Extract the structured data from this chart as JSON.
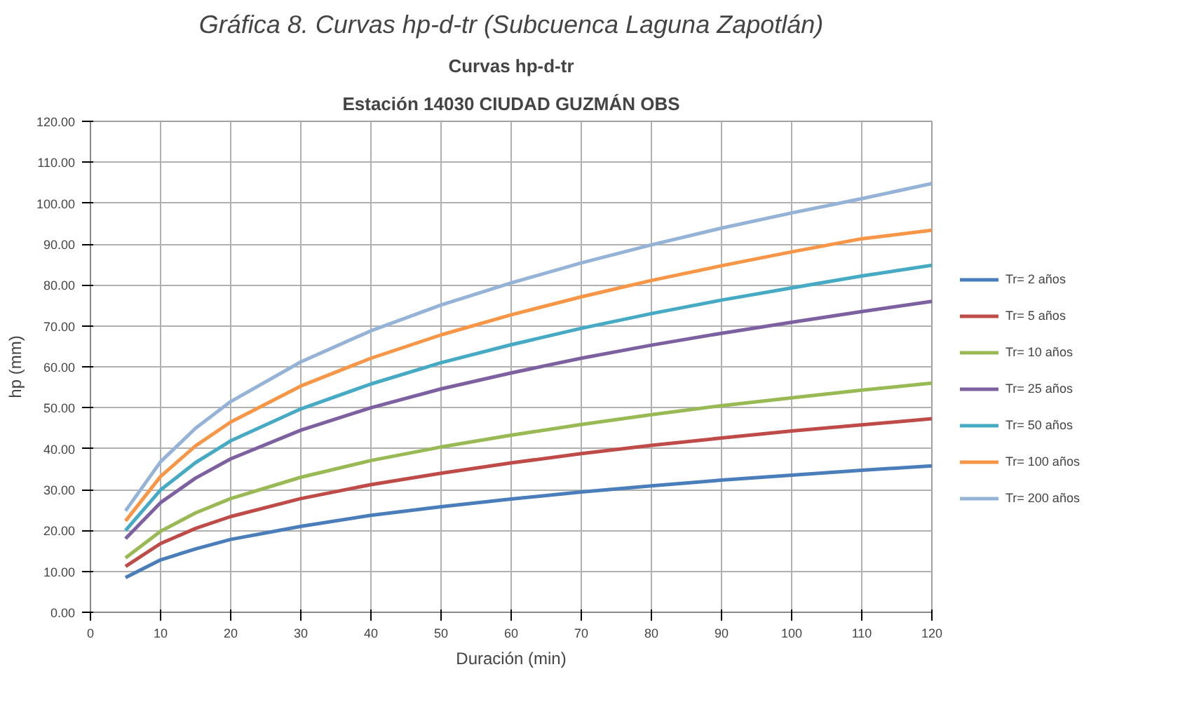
{
  "chart_data": {
    "type": "line",
    "title": "Curvas hp-d-tr",
    "subtitle": "Estación 14030 CIUDAD GUZMÁN OBS",
    "annotations": [
      "Gráfica 8. Curvas hp-d-tr (Subcuenca Laguna Zapotlán)"
    ],
    "xlabel": "Duración (min)",
    "ylabel": "hp (mm)",
    "x": [
      5,
      10,
      15,
      20,
      30,
      40,
      50,
      60,
      70,
      80,
      90,
      100,
      110,
      120
    ],
    "series": [
      {
        "name": "Tr= 2 años",
        "color": "#4a7ebb",
        "values": [
          8.5,
          12.8,
          15.5,
          17.8,
          21,
          23.7,
          25.8,
          27.7,
          29.4,
          30.9,
          32.3,
          33.5,
          34.7,
          35.8
        ]
      },
      {
        "name": "Tr= 5 años",
        "color": "#be4b48",
        "values": [
          11.2,
          16.8,
          20.5,
          23.4,
          27.8,
          31.2,
          34,
          36.5,
          38.8,
          40.8,
          42.6,
          44.3,
          45.8,
          47.3
        ]
      },
      {
        "name": "Tr= 10 años",
        "color": "#98b954",
        "values": [
          13.3,
          19.8,
          24.3,
          27.8,
          33,
          37.1,
          40.4,
          43.3,
          45.9,
          48.3,
          50.5,
          52.4,
          54.3,
          56
        ]
      },
      {
        "name": "Tr= 25 años",
        "color": "#7d60a0",
        "values": [
          18,
          26.8,
          32.8,
          37.5,
          44.5,
          50,
          54.6,
          58.5,
          62.1,
          65.3,
          68.2,
          70.9,
          73.5,
          76
        ]
      },
      {
        "name": "Tr= 50 años",
        "color": "#46aac5",
        "values": [
          20,
          29.9,
          36.6,
          41.9,
          49.7,
          55.8,
          61,
          65.4,
          69.4,
          73,
          76.3,
          79.3,
          82.2,
          84.8
        ]
      },
      {
        "name": "Tr= 100 años",
        "color": "#f79646",
        "values": [
          22.3,
          33.2,
          40.7,
          46.5,
          55.3,
          62.1,
          67.8,
          72.7,
          77.1,
          81.1,
          84.7,
          88.1,
          91.3,
          93.4
        ]
      },
      {
        "name": "Tr= 200 años",
        "color": "#95b3d7",
        "values": [
          24.8,
          36.8,
          45,
          51.5,
          61.2,
          68.8,
          75.1,
          80.5,
          85.4,
          89.8,
          93.9,
          97.6,
          101.1,
          104.8
        ]
      }
    ],
    "xlim": [
      0,
      120
    ],
    "xticks": [
      0,
      10,
      20,
      30,
      40,
      50,
      60,
      70,
      80,
      90,
      100,
      110,
      120
    ],
    "ylim": [
      0,
      120
    ],
    "yticks": [
      {
        "value": 0,
        "label": "0.00"
      },
      {
        "value": 10,
        "label": "10.00"
      },
      {
        "value": 20,
        "label": "20.00"
      },
      {
        "value": 30,
        "label": "30.00"
      },
      {
        "value": 40,
        "label": "40.00"
      },
      {
        "value": 50,
        "label": "50.00"
      },
      {
        "value": 60,
        "label": "60.00"
      },
      {
        "value": 70,
        "label": "70.00"
      },
      {
        "value": 80,
        "label": "80.00"
      },
      {
        "value": 90,
        "label": "90.00"
      },
      {
        "value": 100,
        "label": "100.00"
      },
      {
        "value": 110,
        "label": "110.00"
      },
      {
        "value": 120,
        "label": "120.00"
      }
    ],
    "grid": true,
    "legend": "right",
    "line_style": "solid"
  }
}
